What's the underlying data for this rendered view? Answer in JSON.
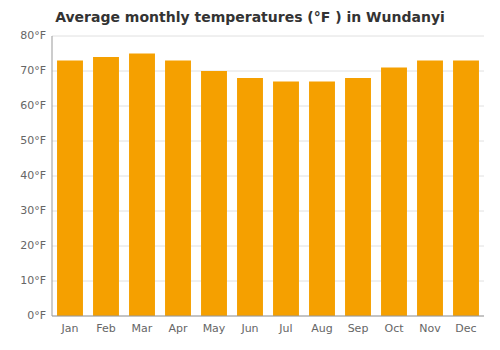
{
  "chart_data": {
    "type": "bar",
    "title": "Average monthly temperatures (°F ) in Wundanyi",
    "categories": [
      "Jan",
      "Feb",
      "Mar",
      "Apr",
      "May",
      "Jun",
      "Jul",
      "Aug",
      "Sep",
      "Oct",
      "Nov",
      "Dec"
    ],
    "values": [
      73,
      74,
      75,
      73,
      70,
      68,
      67,
      67,
      68,
      71,
      73,
      73
    ],
    "color": "#F5A000",
    "ylim": [
      0,
      80
    ],
    "yticks": [
      {
        "value": 0,
        "label": "0°F"
      },
      {
        "value": 10,
        "label": "10°F"
      },
      {
        "value": 20,
        "label": "20°F"
      },
      {
        "value": 30,
        "label": "30°F"
      },
      {
        "value": 40,
        "label": "40°F"
      },
      {
        "value": 50,
        "label": "50°F"
      },
      {
        "value": 60,
        "label": "60°F"
      },
      {
        "value": 70,
        "label": "70°F"
      },
      {
        "value": 80,
        "label": "80°F"
      }
    ],
    "grid": true
  }
}
